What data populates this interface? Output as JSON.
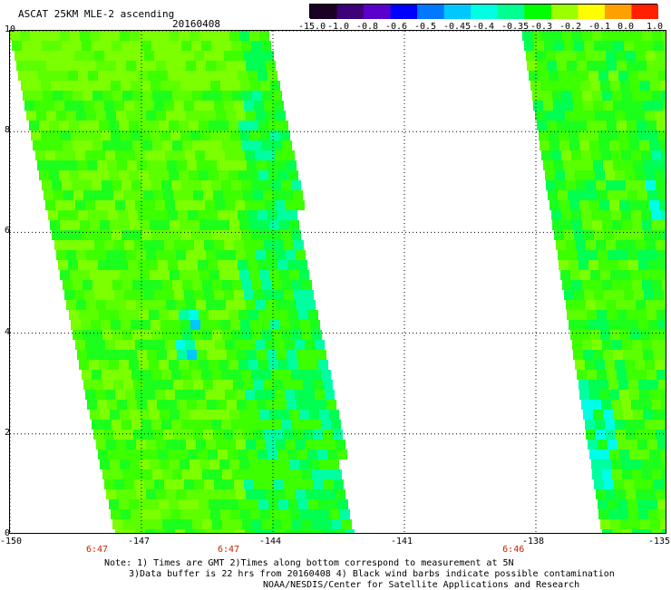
{
  "title": "ASCAT 25KM MLE-2 ascending",
  "date": "20160408",
  "colorbar": {
    "labels": [
      "-15.0",
      "-1.0",
      "-0.8",
      "-0.6",
      "-0.5",
      "-0.45",
      "-0.4",
      "-0.35",
      "-0.3",
      "-0.2",
      "-0.1",
      "0.0",
      "1.0"
    ],
    "colors": [
      "#1a0022",
      "#3c0077",
      "#5b00cc",
      "#0000ff",
      "#0078ff",
      "#00c8ff",
      "#00ffe0",
      "#00ff90",
      "#00ff00",
      "#9cff00",
      "#ffff00",
      "#ffa000",
      "#ff2000"
    ]
  },
  "axes": {
    "y_ticks": [
      "10",
      "8",
      "6",
      "4",
      "2",
      "0"
    ],
    "y_range": [
      0,
      10
    ],
    "x_ticks": [
      "-150",
      "-147",
      "-144",
      "-141",
      "-138",
      "-135"
    ],
    "x_range": [
      -150,
      -135
    ]
  },
  "pass_times": [
    {
      "lon": -147,
      "label": "6:47"
    },
    {
      "lon": -144,
      "label": "6:47"
    },
    {
      "lon": -137.5,
      "label": "6:46"
    }
  ],
  "notes": {
    "line1": "Note: 1) Times are GMT 2)Times along bottom correspond to measurement at 5N",
    "line2": "3)Data buffer is 22 hrs from 20160408 4) Black wind barbs indicate possible contamination",
    "line3": "NOAA/NESDIS/Center for Satellite Applications and Research"
  }
}
